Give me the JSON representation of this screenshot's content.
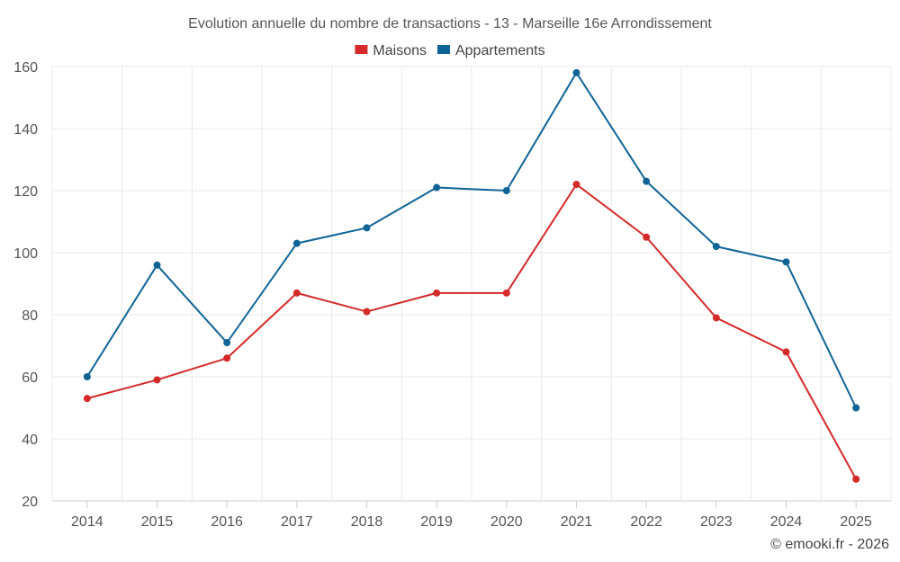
{
  "chart_data": {
    "type": "line",
    "title": "Evolution annuelle du nombre de transactions - 13 - Marseille 16e Arrondissement",
    "categories": [
      "2014",
      "2015",
      "2016",
      "2017",
      "2018",
      "2019",
      "2020",
      "2021",
      "2022",
      "2023",
      "2024",
      "2025"
    ],
    "series": [
      {
        "name": "Maisons",
        "color": "#d42a2a",
        "values": [
          53,
          59,
          66,
          87,
          81,
          87,
          87,
          122,
          105,
          79,
          68,
          27
        ]
      },
      {
        "name": "Appartements",
        "color": "#0f6496",
        "values": [
          60,
          96,
          71,
          103,
          108,
          121,
          120,
          158,
          123,
          102,
          97,
          50
        ]
      }
    ],
    "ylim": [
      20,
      160
    ],
    "yticks": [
      20,
      40,
      60,
      80,
      100,
      120,
      140,
      160
    ],
    "grid": true,
    "legend_position": "top-center",
    "xlabel": "",
    "ylabel": ""
  },
  "credit": "© emooki.fr - 2026"
}
